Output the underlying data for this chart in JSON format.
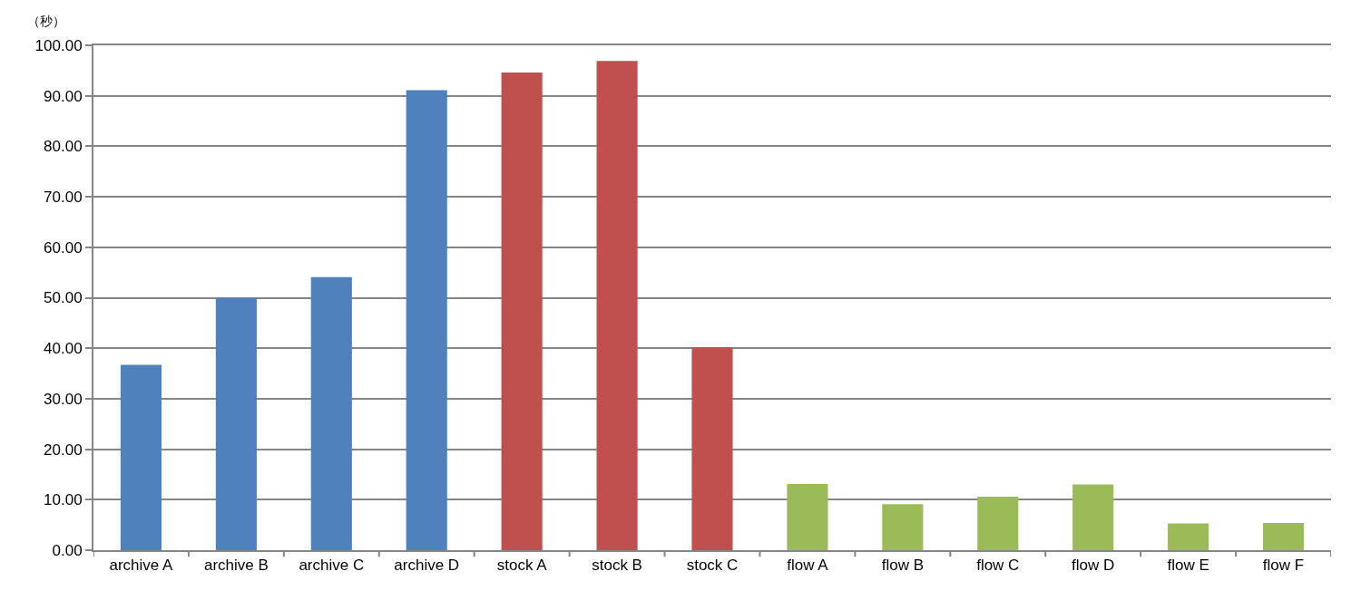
{
  "chart_data": {
    "type": "bar",
    "ylabel": "（秒）",
    "categories": [
      "archive A",
      "archive B",
      "archive C",
      "archive D",
      "stock A",
      "stock B",
      "stock C",
      "flow A",
      "flow B",
      "flow C",
      "flow D",
      "flow E",
      "flow F"
    ],
    "values": [
      36.7,
      50.0,
      54.1,
      91.1,
      94.6,
      96.9,
      40.2,
      13.1,
      9.1,
      10.6,
      13.0,
      5.3,
      5.4
    ],
    "colors": [
      "#4f81bd",
      "#4f81bd",
      "#4f81bd",
      "#4f81bd",
      "#c0504d",
      "#c0504d",
      "#c0504d",
      "#9bbb59",
      "#9bbb59",
      "#9bbb59",
      "#9bbb59",
      "#9bbb59",
      "#9bbb59"
    ],
    "ylim": [
      0,
      100
    ],
    "yticks": [
      {
        "value": 0,
        "label": "0.00"
      },
      {
        "value": 10,
        "label": "10.00"
      },
      {
        "value": 20,
        "label": "20.00"
      },
      {
        "value": 30,
        "label": "30.00"
      },
      {
        "value": 40,
        "label": "40.00"
      },
      {
        "value": 50,
        "label": "50.00"
      },
      {
        "value": 60,
        "label": "60.00"
      },
      {
        "value": 70,
        "label": "70.00"
      },
      {
        "value": 80,
        "label": "80.00"
      },
      {
        "value": 90,
        "label": "90.00"
      },
      {
        "value": 100,
        "label": "100.00"
      }
    ],
    "grid": "y"
  }
}
